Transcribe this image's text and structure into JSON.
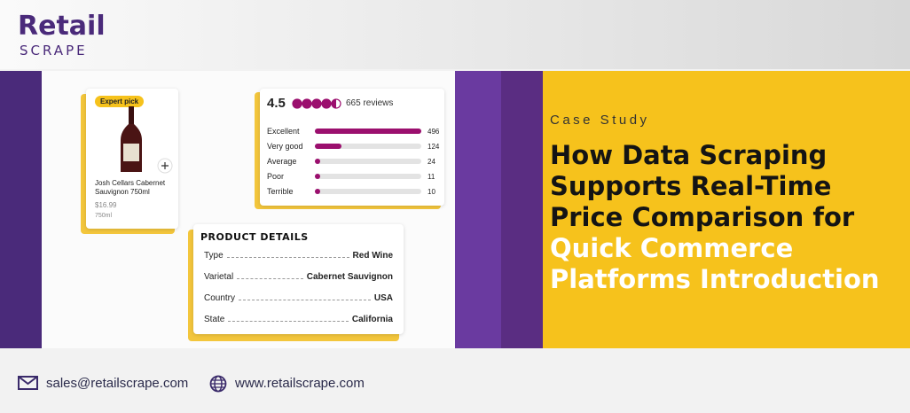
{
  "logo": {
    "top": "Retail",
    "bottom": "SCRAPE"
  },
  "product": {
    "badge": "Expert pick",
    "name": "Josh Cellars Cabernet Sauvignon 750ml",
    "price": "$16.99",
    "size": "750ml"
  },
  "reviews": {
    "rating": 4.5,
    "count_label": "665 reviews",
    "rows": [
      {
        "label": "Excellent",
        "count": 496
      },
      {
        "label": "Very good",
        "count": 124
      },
      {
        "label": "Average",
        "count": 24
      },
      {
        "label": "Poor",
        "count": 11
      },
      {
        "label": "Terrible",
        "count": 10
      }
    ]
  },
  "details": {
    "title": "PRODUCT DETAILS",
    "rows": [
      {
        "key": "Type",
        "value": "Red Wine"
      },
      {
        "key": "Varietal",
        "value": "Cabernet Sauvignon"
      },
      {
        "key": "Country",
        "value": "USA"
      },
      {
        "key": "State",
        "value": "California"
      }
    ]
  },
  "kicker": "Case Study",
  "title": [
    "How Data Scraping",
    "Supports Real-Time",
    "Price Comparison for"
  ],
  "highlight": [
    "Quick Commerce",
    "Platforms Introduction"
  ],
  "contact": {
    "email": "sales@retailscrape.com",
    "website": "www.retailscrape.com"
  }
}
